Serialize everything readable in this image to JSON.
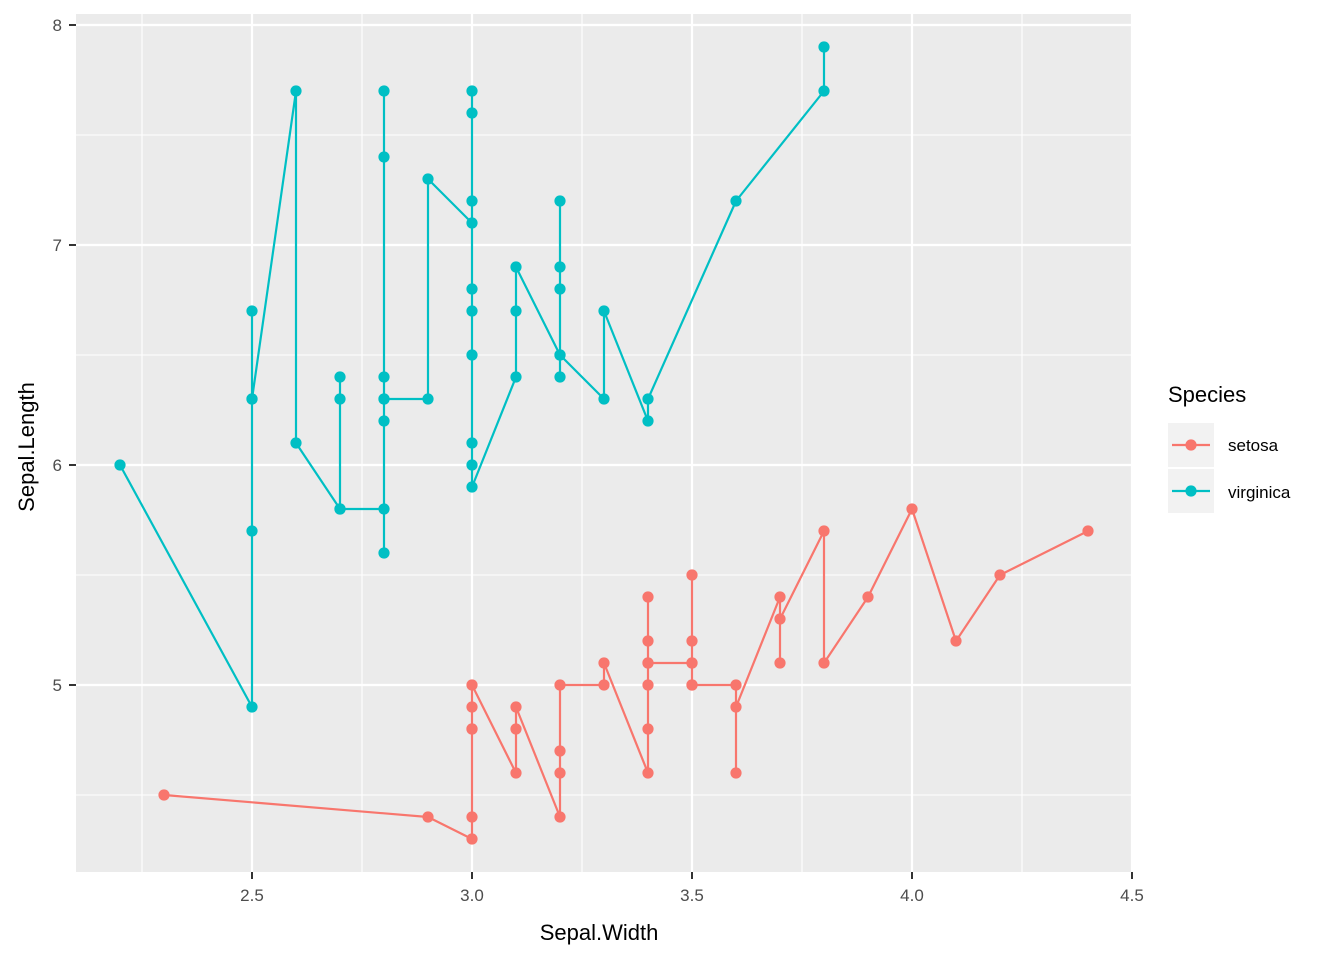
{
  "chart_data": {
    "type": "line",
    "title": "",
    "xlabel": "Sepal.Width",
    "ylabel": "Sepal.Length",
    "xlim": [
      2.1,
      4.5
    ],
    "ylim": [
      4.15,
      8.05
    ],
    "x_ticks": [
      2.5,
      3.0,
      3.5,
      4.0,
      4.5
    ],
    "x_tick_labels": [
      "2.5",
      "3.0",
      "3.5",
      "4.0",
      "4.5"
    ],
    "y_ticks": [
      5,
      6,
      7,
      8
    ],
    "y_tick_labels": [
      "5",
      "6",
      "7",
      "8"
    ],
    "grid": true,
    "legend": {
      "title": "Species",
      "position": "right"
    },
    "series": [
      {
        "name": "setosa",
        "color": "#F8766D",
        "points": [
          [
            2.3,
            4.5
          ],
          [
            2.9,
            4.4
          ],
          [
            3.0,
            4.3
          ],
          [
            3.0,
            4.4
          ],
          [
            3.0,
            4.8
          ],
          [
            3.0,
            4.8
          ],
          [
            3.0,
            4.9
          ],
          [
            3.0,
            5.0
          ],
          [
            3.1,
            4.6
          ],
          [
            3.1,
            4.8
          ],
          [
            3.1,
            4.9
          ],
          [
            3.2,
            4.4
          ],
          [
            3.2,
            4.6
          ],
          [
            3.2,
            4.7
          ],
          [
            3.2,
            5.0
          ],
          [
            3.3,
            5.0
          ],
          [
            3.3,
            5.1
          ],
          [
            3.4,
            4.6
          ],
          [
            3.4,
            4.8
          ],
          [
            3.4,
            5.0
          ],
          [
            3.4,
            5.1
          ],
          [
            3.4,
            5.2
          ],
          [
            3.4,
            5.4
          ],
          [
            3.4,
            5.1
          ],
          [
            3.5,
            5.1
          ],
          [
            3.5,
            5.0
          ],
          [
            3.5,
            5.1
          ],
          [
            3.5,
            5.2
          ],
          [
            3.5,
            5.5
          ],
          [
            3.5,
            5.0
          ],
          [
            3.6,
            5.0
          ],
          [
            3.6,
            4.6
          ],
          [
            3.6,
            4.9
          ],
          [
            3.7,
            5.4
          ],
          [
            3.7,
            5.1
          ],
          [
            3.7,
            5.3
          ],
          [
            3.8,
            5.7
          ],
          [
            3.8,
            5.1
          ],
          [
            3.9,
            5.4
          ],
          [
            4.0,
            5.8
          ],
          [
            4.1,
            5.2
          ],
          [
            4.2,
            5.5
          ],
          [
            4.4,
            5.7
          ]
        ]
      },
      {
        "name": "virginica",
        "color": "#00BFC4",
        "points": [
          [
            2.2,
            6.0
          ],
          [
            2.5,
            4.9
          ],
          [
            2.5,
            5.7
          ],
          [
            2.5,
            6.3
          ],
          [
            2.5,
            6.7
          ],
          [
            2.5,
            6.3
          ],
          [
            2.6,
            7.7
          ],
          [
            2.6,
            6.1
          ],
          [
            2.7,
            5.8
          ],
          [
            2.7,
            6.3
          ],
          [
            2.7,
            6.4
          ],
          [
            2.7,
            5.8
          ],
          [
            2.8,
            5.8
          ],
          [
            2.8,
            5.6
          ],
          [
            2.8,
            6.2
          ],
          [
            2.8,
            6.3
          ],
          [
            2.8,
            6.4
          ],
          [
            2.8,
            7.4
          ],
          [
            2.8,
            7.7
          ],
          [
            2.8,
            6.3
          ],
          [
            2.9,
            6.3
          ],
          [
            2.9,
            7.3
          ],
          [
            3.0,
            7.1
          ],
          [
            3.0,
            7.2
          ],
          [
            3.0,
            7.6
          ],
          [
            3.0,
            7.7
          ],
          [
            3.0,
            6.8
          ],
          [
            3.0,
            6.7
          ],
          [
            3.0,
            6.5
          ],
          [
            3.0,
            6.1
          ],
          [
            3.0,
            6.0
          ],
          [
            3.0,
            5.9
          ],
          [
            3.1,
            6.4
          ],
          [
            3.1,
            6.7
          ],
          [
            3.1,
            6.9
          ],
          [
            3.2,
            6.5
          ],
          [
            3.2,
            6.4
          ],
          [
            3.2,
            6.8
          ],
          [
            3.2,
            6.9
          ],
          [
            3.2,
            7.2
          ],
          [
            3.2,
            6.5
          ],
          [
            3.3,
            6.3
          ],
          [
            3.3,
            6.7
          ],
          [
            3.4,
            6.2
          ],
          [
            3.4,
            6.3
          ],
          [
            3.6,
            7.2
          ],
          [
            3.8,
            7.7
          ],
          [
            3.8,
            7.9
          ]
        ]
      }
    ]
  }
}
